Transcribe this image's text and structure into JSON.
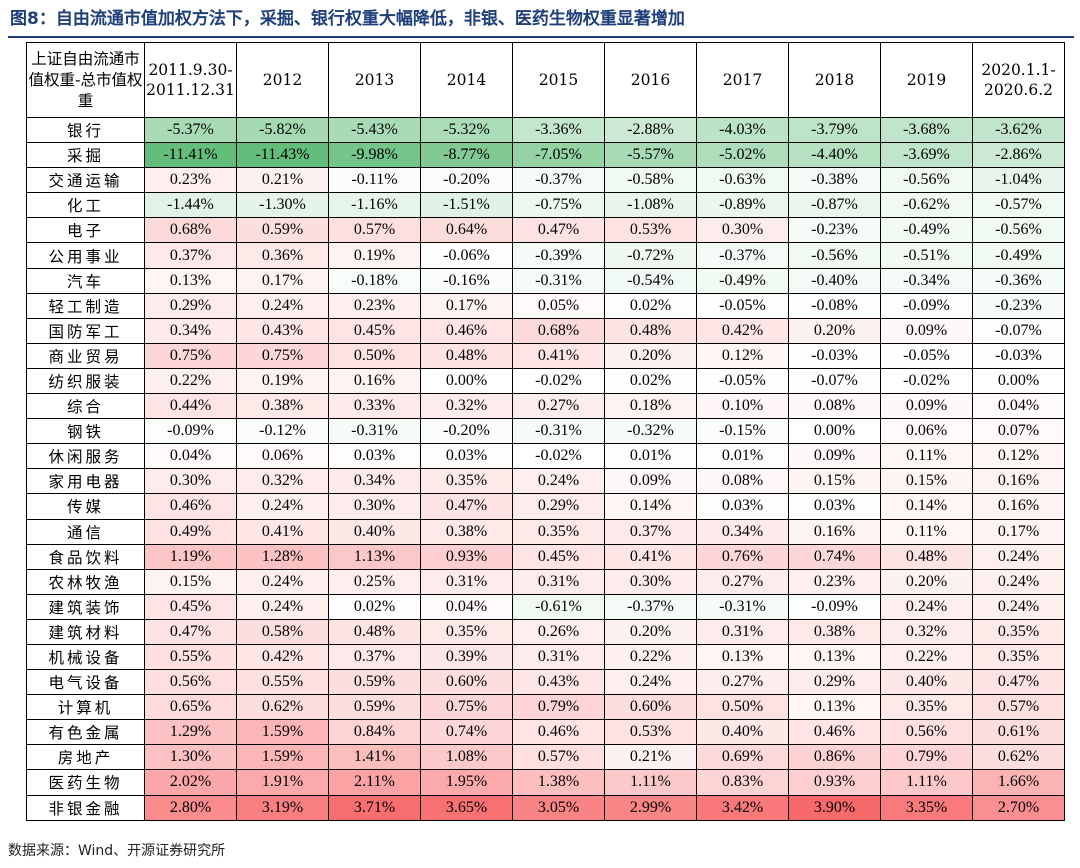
{
  "title": "图8：自由流通市值加权方法下，采掘、银行权重大幅降低，非银、医药生物权重显著增加",
  "source": "数据来源：Wind、开源证券研究所",
  "colors": {
    "title": "#1f3f7a",
    "negative": "#63be7b",
    "positive": "#f8696b",
    "neutral": "#ffffff"
  },
  "chart_data": {
    "type": "heatmap",
    "corner_label": "上证自由流通市值权重-总市值权重",
    "columns": [
      "2011.9.30-2011.12.31",
      "2012",
      "2013",
      "2014",
      "2015",
      "2016",
      "2017",
      "2018",
      "2019",
      "2020.1.1-2020.6.2"
    ],
    "rows": [
      {
        "industry": "银行",
        "values": [
          -5.37,
          -5.82,
          -5.43,
          -5.32,
          -3.36,
          -2.88,
          -4.03,
          -3.79,
          -3.68,
          -3.62
        ]
      },
      {
        "industry": "采掘",
        "values": [
          -11.41,
          -11.43,
          -9.98,
          -8.77,
          -7.05,
          -5.57,
          -5.02,
          -4.4,
          -3.69,
          -2.86
        ]
      },
      {
        "industry": "交通运输",
        "values": [
          0.23,
          0.21,
          -0.11,
          -0.2,
          -0.37,
          -0.58,
          -0.63,
          -0.38,
          -0.56,
          -1.04
        ]
      },
      {
        "industry": "化工",
        "values": [
          -1.44,
          -1.3,
          -1.16,
          -1.51,
          -0.75,
          -1.08,
          -0.89,
          -0.87,
          -0.62,
          -0.57
        ]
      },
      {
        "industry": "电子",
        "values": [
          0.68,
          0.59,
          0.57,
          0.64,
          0.47,
          0.53,
          0.3,
          -0.23,
          -0.49,
          -0.56
        ]
      },
      {
        "industry": "公用事业",
        "values": [
          0.37,
          0.36,
          0.19,
          -0.06,
          -0.39,
          -0.72,
          -0.37,
          -0.56,
          -0.51,
          -0.49
        ]
      },
      {
        "industry": "汽车",
        "values": [
          0.13,
          0.17,
          -0.18,
          -0.16,
          -0.31,
          -0.54,
          -0.49,
          -0.4,
          -0.34,
          -0.36
        ]
      },
      {
        "industry": "轻工制造",
        "values": [
          0.29,
          0.24,
          0.23,
          0.17,
          0.05,
          0.02,
          -0.05,
          -0.08,
          -0.09,
          -0.23
        ]
      },
      {
        "industry": "国防军工",
        "values": [
          0.34,
          0.43,
          0.45,
          0.46,
          0.68,
          0.48,
          0.42,
          0.2,
          0.09,
          -0.07
        ]
      },
      {
        "industry": "商业贸易",
        "values": [
          0.75,
          0.75,
          0.5,
          0.48,
          0.41,
          0.2,
          0.12,
          -0.03,
          -0.05,
          -0.03
        ]
      },
      {
        "industry": "纺织服装",
        "values": [
          0.22,
          0.19,
          0.16,
          0.0,
          -0.02,
          0.02,
          -0.05,
          -0.07,
          -0.02,
          0.0
        ]
      },
      {
        "industry": "综合",
        "values": [
          0.44,
          0.38,
          0.33,
          0.32,
          0.27,
          0.18,
          0.1,
          0.08,
          0.09,
          0.04
        ]
      },
      {
        "industry": "钢铁",
        "values": [
          -0.09,
          -0.12,
          -0.31,
          -0.2,
          -0.31,
          -0.32,
          -0.15,
          0.0,
          0.06,
          0.07
        ]
      },
      {
        "industry": "休闲服务",
        "values": [
          0.04,
          0.06,
          0.03,
          0.03,
          -0.02,
          0.01,
          0.01,
          0.09,
          0.11,
          0.12
        ]
      },
      {
        "industry": "家用电器",
        "values": [
          0.3,
          0.32,
          0.34,
          0.35,
          0.24,
          0.09,
          0.08,
          0.15,
          0.15,
          0.16
        ]
      },
      {
        "industry": "传媒",
        "values": [
          0.46,
          0.24,
          0.3,
          0.47,
          0.29,
          0.14,
          0.03,
          0.03,
          0.14,
          0.16
        ]
      },
      {
        "industry": "通信",
        "values": [
          0.49,
          0.41,
          0.4,
          0.38,
          0.35,
          0.37,
          0.34,
          0.16,
          0.11,
          0.17
        ]
      },
      {
        "industry": "食品饮料",
        "values": [
          1.19,
          1.28,
          1.13,
          0.93,
          0.45,
          0.41,
          0.76,
          0.74,
          0.48,
          0.24
        ]
      },
      {
        "industry": "农林牧渔",
        "values": [
          0.15,
          0.24,
          0.25,
          0.31,
          0.31,
          0.3,
          0.27,
          0.23,
          0.2,
          0.24
        ]
      },
      {
        "industry": "建筑装饰",
        "values": [
          0.45,
          0.24,
          0.02,
          0.04,
          -0.61,
          -0.37,
          -0.31,
          -0.09,
          0.24,
          0.24
        ]
      },
      {
        "industry": "建筑材料",
        "values": [
          0.47,
          0.58,
          0.48,
          0.35,
          0.26,
          0.2,
          0.31,
          0.38,
          0.32,
          0.35
        ]
      },
      {
        "industry": "机械设备",
        "values": [
          0.55,
          0.42,
          0.37,
          0.39,
          0.31,
          0.22,
          0.13,
          0.13,
          0.22,
          0.35
        ]
      },
      {
        "industry": "电气设备",
        "values": [
          0.56,
          0.55,
          0.59,
          0.6,
          0.43,
          0.24,
          0.27,
          0.29,
          0.4,
          0.47
        ]
      },
      {
        "industry": "计算机",
        "values": [
          0.65,
          0.62,
          0.59,
          0.75,
          0.79,
          0.6,
          0.5,
          0.13,
          0.35,
          0.57
        ]
      },
      {
        "industry": "有色金属",
        "values": [
          1.29,
          1.59,
          0.84,
          0.74,
          0.46,
          0.53,
          0.4,
          0.46,
          0.56,
          0.61
        ]
      },
      {
        "industry": "房地产",
        "values": [
          1.3,
          1.59,
          1.41,
          1.08,
          0.57,
          0.21,
          0.69,
          0.86,
          0.79,
          0.62
        ]
      },
      {
        "industry": "医药生物",
        "values": [
          2.02,
          1.91,
          2.11,
          1.95,
          1.38,
          1.11,
          0.83,
          0.93,
          1.11,
          1.66
        ]
      },
      {
        "industry": "非银金融",
        "values": [
          2.8,
          3.19,
          3.71,
          3.65,
          3.05,
          2.99,
          3.42,
          3.9,
          3.35,
          2.7
        ]
      }
    ]
  }
}
